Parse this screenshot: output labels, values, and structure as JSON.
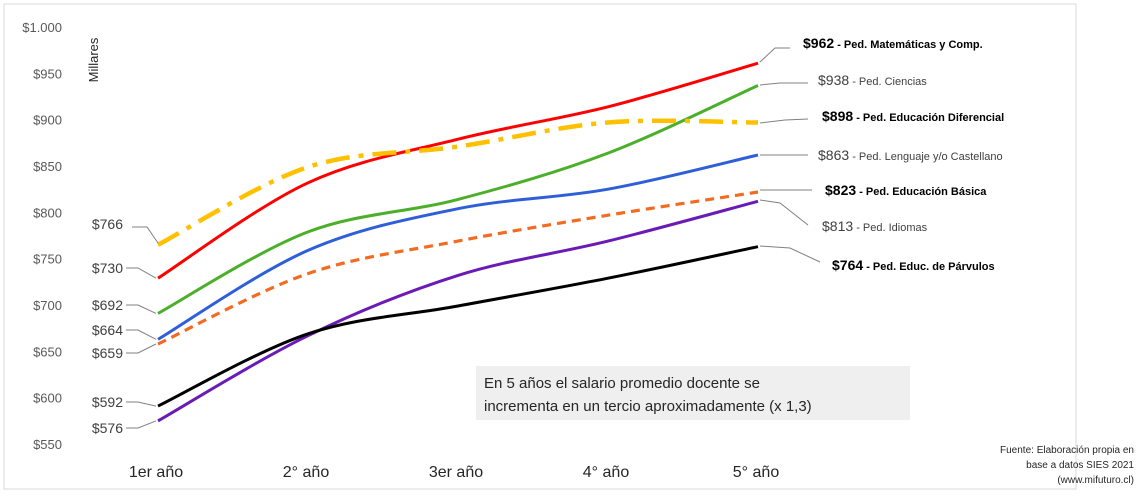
{
  "chart_data": {
    "type": "line",
    "title": "",
    "ylabel": "Millares",
    "xlabel": "",
    "categories": [
      "1er año",
      "2° año",
      "3er año",
      "4° año",
      "5° año"
    ],
    "ylim": [
      550,
      1000
    ],
    "yticks": [
      550,
      600,
      650,
      700,
      750,
      800,
      850,
      900,
      950,
      1000
    ],
    "ytick_labels": [
      "$550",
      "$600",
      "$650",
      "$700",
      "$750",
      "$800",
      "$850",
      "$900",
      "$950",
      "$1.000"
    ],
    "grid": false,
    "series": [
      {
        "name": "Ped. Matemáticas y Comp.",
        "values": [
          730,
          833,
          880,
          915,
          962
        ],
        "color": "#FF0000",
        "dash": "solid",
        "bold": true,
        "start_label": "$730",
        "end_value": "$962",
        "end_sep": " - ",
        "end_name": "Ped. Matemáticas y Comp."
      },
      {
        "name": "Ped. Ciencias",
        "values": [
          692,
          780,
          815,
          865,
          938
        ],
        "color": "#4CAF2A",
        "dash": "solid",
        "bold": false,
        "start_label": "$692",
        "end_value": "$938",
        "end_sep": " - ",
        "end_name": "Ped. Ciencias"
      },
      {
        "name": "Ped. Educación Diferencial",
        "values": [
          766,
          850,
          872,
          898,
          898
        ],
        "color": "#FFC000",
        "dash": "dashdot",
        "bold": true,
        "start_label": "$766",
        "end_value": "$898",
        "end_sep": " - ",
        "end_name": "Ped. Educación Diferencial"
      },
      {
        "name": "Ped. Lenguaje y/o Castellano",
        "values": [
          664,
          760,
          805,
          826,
          863
        ],
        "color": "#2E5FD8",
        "dash": "solid",
        "bold": false,
        "start_label": "$664",
        "end_value": "$863",
        "end_sep": " - ",
        "end_name": "Ped. Lenguaje y/o Castellano"
      },
      {
        "name": "Ped. Educación Básica",
        "values": [
          659,
          735,
          770,
          798,
          823
        ],
        "color": "#F26B21",
        "dash": "dashed",
        "bold": true,
        "start_label": "$659",
        "end_value": "$823",
        "end_sep": " - ",
        "end_name": "Ped. Educación Básica"
      },
      {
        "name": "Ped. Idiomas",
        "values": [
          576,
          668,
          733,
          770,
          813
        ],
        "color": "#6A1BB5",
        "dash": "solid",
        "bold": false,
        "start_label": "$576",
        "end_value": "$813",
        "end_sep": "  - ",
        "end_name": "Ped. Idiomas"
      },
      {
        "name": "Ped. Educ. de Párvulos",
        "values": [
          592,
          670,
          700,
          730,
          764
        ],
        "color": "#000000",
        "dash": "solid",
        "bold": true,
        "start_label": "$592",
        "end_value": "$764",
        "end_sep": "  - ",
        "end_name": "Ped. Educ. de Párvulos"
      }
    ],
    "annotation": {
      "line1": "En 5 años el salario promedio docente se",
      "line2": "incrementa en un tercio aproximadamente (x 1,3)"
    },
    "source": {
      "line1": "Fuente: Elaboración propia en",
      "line2": "base a datos SIES 2021",
      "line3": "(www.mifuturo.cl)"
    }
  }
}
